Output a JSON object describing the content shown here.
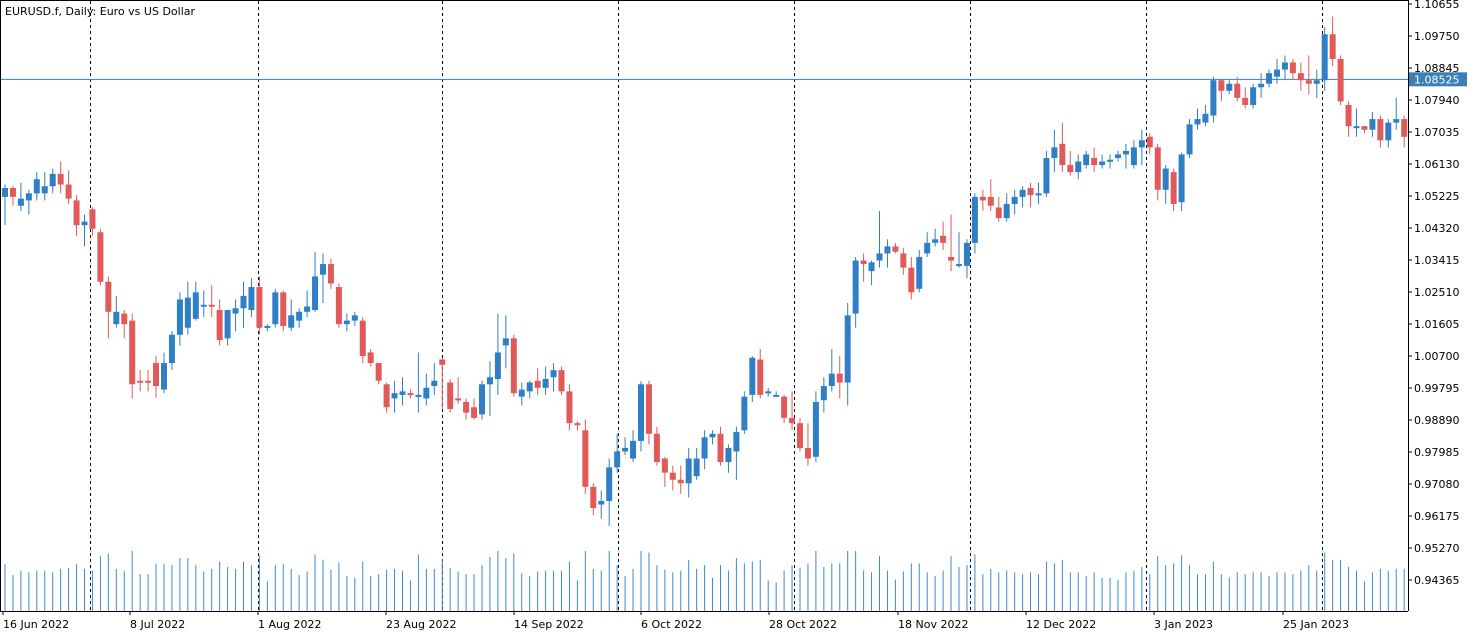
{
  "header": {
    "symbol_title": "EURUSD.f, Daily:  Euro vs US Dollar"
  },
  "current_price_label": "1.08525",
  "colors": {
    "bull": "#2f7fc6",
    "bear": "#e05a5a",
    "grid": "#000000",
    "price_line": "#3a7fb8",
    "volume": "#3a8ad0",
    "background": "#ffffff"
  },
  "chart_data": {
    "type": "candlestick",
    "title": "EURUSD.f, Daily:  Euro vs US Dollar",
    "y_ticks": [
      "1.10655",
      "1.09750",
      "1.08845",
      "1.07940",
      "1.07035",
      "1.06130",
      "1.05225",
      "1.04320",
      "1.03415",
      "1.02510",
      "1.01605",
      "1.00700",
      "0.99795",
      "0.98890",
      "0.97985",
      "0.97080",
      "0.96175",
      "0.95270",
      "0.94365"
    ],
    "ylim": [
      0.94,
      1.1075
    ],
    "x_tick_labels": [
      "16 Jun 2022",
      "8 Jul 2022",
      "1 Aug 2022",
      "23 Aug 2022",
      "14 Sep 2022",
      "6 Oct 2022",
      "28 Oct 2022",
      "18 Nov 2022",
      "12 Dec 2022",
      "3 Jan 2023",
      "25 Jan 2023"
    ],
    "current_price": 1.08525,
    "candles": [
      {
        "o": 1.052,
        "h": 1.0555,
        "l": 1.044,
        "c": 1.0545
      },
      {
        "o": 1.0545,
        "h": 1.055,
        "l": 1.0495,
        "c": 1.052
      },
      {
        "o": 1.0495,
        "h": 1.056,
        "l": 1.048,
        "c": 1.0515
      },
      {
        "o": 1.051,
        "h": 1.054,
        "l": 1.047,
        "c": 1.053
      },
      {
        "o": 1.053,
        "h": 1.059,
        "l": 1.051,
        "c": 1.057
      },
      {
        "o": 1.053,
        "h": 1.059,
        "l": 1.051,
        "c": 1.055
      },
      {
        "o": 1.055,
        "h": 1.06,
        "l": 1.053,
        "c": 1.0585
      },
      {
        "o": 1.0585,
        "h": 1.062,
        "l": 1.053,
        "c": 1.0555
      },
      {
        "o": 1.0555,
        "h": 1.0595,
        "l": 1.05,
        "c": 1.0515
      },
      {
        "o": 1.051,
        "h": 1.0525,
        "l": 1.041,
        "c": 1.044
      },
      {
        "o": 1.044,
        "h": 1.047,
        "l": 1.038,
        "c": 1.045
      },
      {
        "o": 1.0485,
        "h": 1.049,
        "l": 1.041,
        "c": 1.043
      },
      {
        "o": 1.042,
        "h": 1.043,
        "l": 1.027,
        "c": 1.028
      },
      {
        "o": 1.028,
        "h": 1.0295,
        "l": 1.012,
        "c": 1.0195
      },
      {
        "o": 1.016,
        "h": 1.024,
        "l": 1.015,
        "c": 1.0195
      },
      {
        "o": 1.019,
        "h": 1.02,
        "l": 1.012,
        "c": 1.016
      },
      {
        "o": 1.017,
        "h": 1.019,
        "l": 0.995,
        "c": 0.999
      },
      {
        "o": 1.0,
        "h": 1.003,
        "l": 0.997,
        "c": 0.9995
      },
      {
        "o": 1.0,
        "h": 1.003,
        "l": 0.997,
        "c": 0.9995
      },
      {
        "o": 1.005,
        "h": 1.007,
        "l": 0.9952,
        "c": 0.9985
      },
      {
        "o": 0.9975,
        "h": 1.008,
        "l": 0.9965,
        "c": 1.005
      },
      {
        "o": 1.005,
        "h": 1.014,
        "l": 1.003,
        "c": 1.013
      },
      {
        "o": 1.013,
        "h": 1.025,
        "l": 1.01,
        "c": 1.023
      },
      {
        "o": 1.015,
        "h": 1.028,
        "l": 1.013,
        "c": 1.0235
      },
      {
        "o": 1.0175,
        "h": 1.028,
        "l": 1.017,
        "c": 1.025
      },
      {
        "o": 1.021,
        "h": 1.0255,
        "l": 1.018,
        "c": 1.0215
      },
      {
        "o": 1.0215,
        "h": 1.027,
        "l": 1.018,
        "c": 1.021
      },
      {
        "o": 1.02,
        "h": 1.023,
        "l": 1.01,
        "c": 1.0115
      },
      {
        "o": 1.012,
        "h": 1.02,
        "l": 1.01,
        "c": 1.02
      },
      {
        "o": 1.019,
        "h": 1.023,
        "l": 1.014,
        "c": 1.0205
      },
      {
        "o": 1.0205,
        "h": 1.028,
        "l": 1.015,
        "c": 1.024
      },
      {
        "o": 1.02,
        "h": 1.029,
        "l": 1.018,
        "c": 1.0265
      },
      {
        "o": 1.0265,
        "h": 1.0295,
        "l": 1.013,
        "c": 1.015
      },
      {
        "o": 1.015,
        "h": 1.016,
        "l": 1.014,
        "c": 1.0155
      },
      {
        "o": 1.016,
        "h": 1.026,
        "l": 1.015,
        "c": 1.025
      },
      {
        "o": 1.025,
        "h": 1.0255,
        "l": 1.014,
        "c": 1.0155
      },
      {
        "o": 1.015,
        "h": 1.023,
        "l": 1.014,
        "c": 1.0185
      },
      {
        "o": 1.017,
        "h": 1.0205,
        "l": 1.015,
        "c": 1.0195
      },
      {
        "o": 1.0195,
        "h": 1.0255,
        "l": 1.018,
        "c": 1.021
      },
      {
        "o": 1.02,
        "h": 1.0365,
        "l": 1.0195,
        "c": 1.0295
      },
      {
        "o": 1.03,
        "h": 1.036,
        "l": 1.022,
        "c": 1.033
      },
      {
        "o": 1.033,
        "h": 1.0345,
        "l": 1.026,
        "c": 1.0275
      },
      {
        "o": 1.0265,
        "h": 1.0275,
        "l": 1.015,
        "c": 1.016
      },
      {
        "o": 1.016,
        "h": 1.019,
        "l": 1.014,
        "c": 1.017
      },
      {
        "o": 1.017,
        "h": 1.0195,
        "l": 1.0155,
        "c": 1.0185
      },
      {
        "o": 1.017,
        "h": 1.018,
        "l": 1.005,
        "c": 1.007
      },
      {
        "o": 1.008,
        "h": 1.009,
        "l": 1.004,
        "c": 1.005
      },
      {
        "o": 1.005,
        "h": 1.005,
        "l": 0.999,
        "c": 1.0
      },
      {
        "o": 0.999,
        "h": 0.9995,
        "l": 0.991,
        "c": 0.9925
      },
      {
        "o": 0.995,
        "h": 1.0,
        "l": 0.991,
        "c": 0.9965
      },
      {
        "o": 0.996,
        "h": 1.001,
        "l": 0.993,
        "c": 0.997
      },
      {
        "o": 0.9965,
        "h": 0.9975,
        "l": 0.995,
        "c": 0.996
      },
      {
        "o": 0.996,
        "h": 1.008,
        "l": 0.991,
        "c": 0.996
      },
      {
        "o": 0.995,
        "h": 1.002,
        "l": 0.993,
        "c": 0.998
      },
      {
        "o": 0.9985,
        "h": 1.005,
        "l": 0.996,
        "c": 1.0
      },
      {
        "o": 1.006,
        "h": 1.0065,
        "l": 0.992,
        "c": 1.0045
      },
      {
        "o": 0.9995,
        "h": 1.0005,
        "l": 0.991,
        "c": 0.992
      },
      {
        "o": 0.995,
        "h": 1.001,
        "l": 0.9935,
        "c": 0.9945
      },
      {
        "o": 0.994,
        "h": 0.995,
        "l": 0.989,
        "c": 0.991
      },
      {
        "o": 0.9925,
        "h": 0.995,
        "l": 0.989,
        "c": 0.9895
      },
      {
        "o": 0.9905,
        "h": 1.0,
        "l": 0.989,
        "c": 0.999
      },
      {
        "o": 0.999,
        "h": 1.0055,
        "l": 0.99,
        "c": 1.001
      },
      {
        "o": 1.0005,
        "h": 1.019,
        "l": 0.996,
        "c": 1.008
      },
      {
        "o": 1.01,
        "h": 1.0185,
        "l": 1.0035,
        "c": 1.012
      },
      {
        "o": 1.012,
        "h": 1.013,
        "l": 0.9955,
        "c": 0.9965
      },
      {
        "o": 0.9955,
        "h": 0.9995,
        "l": 0.993,
        "c": 0.9975
      },
      {
        "o": 0.997,
        "h": 1.0,
        "l": 0.995,
        "c": 0.9995
      },
      {
        "o": 1.0,
        "h": 1.0035,
        "l": 0.996,
        "c": 0.998
      },
      {
        "o": 0.998,
        "h": 1.004,
        "l": 0.996,
        "c": 1.0005
      },
      {
        "o": 1.001,
        "h": 1.005,
        "l": 0.997,
        "c": 1.003
      },
      {
        "o": 1.003,
        "h": 1.004,
        "l": 0.996,
        "c": 0.997
      },
      {
        "o": 0.997,
        "h": 0.999,
        "l": 0.986,
        "c": 0.988
      },
      {
        "o": 0.988,
        "h": 0.9885,
        "l": 0.986,
        "c": 0.9875
      },
      {
        "o": 0.986,
        "h": 0.989,
        "l": 0.968,
        "c": 0.97
      },
      {
        "o": 0.97,
        "h": 0.971,
        "l": 0.962,
        "c": 0.964
      },
      {
        "o": 0.965,
        "h": 0.969,
        "l": 0.961,
        "c": 0.966
      },
      {
        "o": 0.966,
        "h": 0.978,
        "l": 0.959,
        "c": 0.9755
      },
      {
        "o": 0.9755,
        "h": 0.985,
        "l": 0.974,
        "c": 0.98
      },
      {
        "o": 0.98,
        "h": 0.984,
        "l": 0.979,
        "c": 0.981
      },
      {
        "o": 0.978,
        "h": 0.986,
        "l": 0.977,
        "c": 0.983
      },
      {
        "o": 0.983,
        "h": 0.9999,
        "l": 0.98,
        "c": 0.999
      },
      {
        "o": 0.999,
        "h": 1.0,
        "l": 0.982,
        "c": 0.985
      },
      {
        "o": 0.985,
        "h": 0.987,
        "l": 0.976,
        "c": 0.977
      },
      {
        "o": 0.978,
        "h": 0.9785,
        "l": 0.97,
        "c": 0.974
      },
      {
        "o": 0.974,
        "h": 0.976,
        "l": 0.969,
        "c": 0.972
      },
      {
        "o": 0.972,
        "h": 0.976,
        "l": 0.968,
        "c": 0.971
      },
      {
        "o": 0.971,
        "h": 0.981,
        "l": 0.967,
        "c": 0.978
      },
      {
        "o": 0.973,
        "h": 0.981,
        "l": 0.972,
        "c": 0.978
      },
      {
        "o": 0.978,
        "h": 0.986,
        "l": 0.975,
        "c": 0.984
      },
      {
        "o": 0.984,
        "h": 0.986,
        "l": 0.982,
        "c": 0.985
      },
      {
        "o": 0.985,
        "h": 0.987,
        "l": 0.976,
        "c": 0.977
      },
      {
        "o": 0.977,
        "h": 0.982,
        "l": 0.974,
        "c": 0.981
      },
      {
        "o": 0.98,
        "h": 0.987,
        "l": 0.972,
        "c": 0.9855
      },
      {
        "o": 0.986,
        "h": 0.997,
        "l": 0.985,
        "c": 0.9955
      },
      {
        "o": 0.996,
        "h": 1.007,
        "l": 0.994,
        "c": 1.0065
      },
      {
        "o": 1.006,
        "h": 1.009,
        "l": 0.995,
        "c": 0.996
      },
      {
        "o": 0.9965,
        "h": 0.998,
        "l": 0.9955,
        "c": 0.997
      },
      {
        "o": 0.996,
        "h": 0.997,
        "l": 0.9955,
        "c": 0.996
      },
      {
        "o": 0.9955,
        "h": 0.996,
        "l": 0.988,
        "c": 0.9895
      },
      {
        "o": 0.9895,
        "h": 0.997,
        "l": 0.986,
        "c": 0.988
      },
      {
        "o": 0.988,
        "h": 0.9895,
        "l": 0.98,
        "c": 0.981
      },
      {
        "o": 0.981,
        "h": 0.988,
        "l": 0.976,
        "c": 0.978
      },
      {
        "o": 0.9785,
        "h": 0.997,
        "l": 0.977,
        "c": 0.994
      },
      {
        "o": 0.9945,
        "h": 1.001,
        "l": 0.991,
        "c": 0.9985
      },
      {
        "o": 0.9985,
        "h": 1.009,
        "l": 0.997,
        "c": 1.002
      },
      {
        "o": 1.002,
        "h": 1.007,
        "l": 0.995,
        "c": 0.9995
      },
      {
        "o": 0.9995,
        "h": 1.022,
        "l": 0.993,
        "c": 1.0185
      },
      {
        "o": 1.019,
        "h": 1.035,
        "l": 1.015,
        "c": 1.034
      },
      {
        "o": 1.034,
        "h": 1.036,
        "l": 1.028,
        "c": 1.033
      },
      {
        "o": 1.031,
        "h": 1.034,
        "l": 1.027,
        "c": 1.0335
      },
      {
        "o": 1.034,
        "h": 1.048,
        "l": 1.032,
        "c": 1.036
      },
      {
        "o": 1.036,
        "h": 1.04,
        "l": 1.032,
        "c": 1.038
      },
      {
        "o": 1.038,
        "h": 1.039,
        "l": 1.036,
        "c": 1.0365
      },
      {
        "o": 1.036,
        "h": 1.0375,
        "l": 1.03,
        "c": 1.032
      },
      {
        "o": 1.032,
        "h": 1.035,
        "l": 1.023,
        "c": 1.025
      },
      {
        "o": 1.026,
        "h": 1.037,
        "l": 1.025,
        "c": 1.035
      },
      {
        "o": 1.036,
        "h": 1.042,
        "l": 1.035,
        "c": 1.039
      },
      {
        "o": 1.039,
        "h": 1.043,
        "l": 1.038,
        "c": 1.04
      },
      {
        "o": 1.041,
        "h": 1.045,
        "l": 1.037,
        "c": 1.039
      },
      {
        "o": 1.035,
        "h": 1.047,
        "l": 1.031,
        "c": 1.034
      },
      {
        "o": 1.033,
        "h": 1.042,
        "l": 1.032,
        "c": 1.033
      },
      {
        "o": 1.0325,
        "h": 1.04,
        "l": 1.029,
        "c": 1.039
      },
      {
        "o": 1.039,
        "h": 1.053,
        "l": 1.036,
        "c": 1.052
      },
      {
        "o": 1.052,
        "h": 1.054,
        "l": 1.048,
        "c": 1.051
      },
      {
        "o": 1.052,
        "h": 1.057,
        "l": 1.048,
        "c": 1.0495
      },
      {
        "o": 1.049,
        "h": 1.052,
        "l": 1.045,
        "c": 1.046
      },
      {
        "o": 1.046,
        "h": 1.053,
        "l": 1.045,
        "c": 1.05
      },
      {
        "o": 1.05,
        "h": 1.054,
        "l": 1.047,
        "c": 1.052
      },
      {
        "o": 1.052,
        "h": 1.055,
        "l": 1.049,
        "c": 1.054
      },
      {
        "o": 1.0545,
        "h": 1.056,
        "l": 1.049,
        "c": 1.0525
      },
      {
        "o": 1.0525,
        "h": 1.056,
        "l": 1.05,
        "c": 1.053
      },
      {
        "o": 1.053,
        "h": 1.065,
        "l": 1.052,
        "c": 1.063
      },
      {
        "o": 1.063,
        "h": 1.071,
        "l": 1.059,
        "c": 1.066
      },
      {
        "o": 1.067,
        "h": 1.073,
        "l": 1.059,
        "c": 1.061
      },
      {
        "o": 1.061,
        "h": 1.065,
        "l": 1.058,
        "c": 1.059
      },
      {
        "o": 1.059,
        "h": 1.064,
        "l": 1.057,
        "c": 1.062
      },
      {
        "o": 1.061,
        "h": 1.065,
        "l": 1.06,
        "c": 1.064
      },
      {
        "o": 1.063,
        "h": 1.066,
        "l": 1.059,
        "c": 1.061
      },
      {
        "o": 1.061,
        "h": 1.064,
        "l": 1.06,
        "c": 1.062
      },
      {
        "o": 1.062,
        "h": 1.064,
        "l": 1.06,
        "c": 1.0625
      },
      {
        "o": 1.063,
        "h": 1.065,
        "l": 1.062,
        "c": 1.064
      },
      {
        "o": 1.064,
        "h": 1.067,
        "l": 1.06,
        "c": 1.065
      },
      {
        "o": 1.061,
        "h": 1.068,
        "l": 1.06,
        "c": 1.066
      },
      {
        "o": 1.066,
        "h": 1.071,
        "l": 1.061,
        "c": 1.068
      },
      {
        "o": 1.069,
        "h": 1.07,
        "l": 1.064,
        "c": 1.066
      },
      {
        "o": 1.066,
        "h": 1.067,
        "l": 1.051,
        "c": 1.054
      },
      {
        "o": 1.054,
        "h": 1.061,
        "l": 1.05,
        "c": 1.06
      },
      {
        "o": 1.059,
        "h": 1.06,
        "l": 1.048,
        "c": 1.05
      },
      {
        "o": 1.0505,
        "h": 1.0645,
        "l": 1.048,
        "c": 1.064
      },
      {
        "o": 1.064,
        "h": 1.074,
        "l": 1.063,
        "c": 1.0725
      },
      {
        "o": 1.0725,
        "h": 1.077,
        "l": 1.071,
        "c": 1.074
      },
      {
        "o": 1.073,
        "h": 1.078,
        "l": 1.072,
        "c": 1.0755
      },
      {
        "o": 1.075,
        "h": 1.086,
        "l": 1.073,
        "c": 1.085
      },
      {
        "o": 1.085,
        "h": 1.085,
        "l": 1.079,
        "c": 1.082
      },
      {
        "o": 1.082,
        "h": 1.085,
        "l": 1.081,
        "c": 1.084
      },
      {
        "o": 1.084,
        "h": 1.086,
        "l": 1.079,
        "c": 1.08
      },
      {
        "o": 1.08,
        "h": 1.083,
        "l": 1.077,
        "c": 1.078
      },
      {
        "o": 1.078,
        "h": 1.084,
        "l": 1.077,
        "c": 1.083
      },
      {
        "o": 1.083,
        "h": 1.087,
        "l": 1.08,
        "c": 1.084
      },
      {
        "o": 1.084,
        "h": 1.088,
        "l": 1.083,
        "c": 1.087
      },
      {
        "o": 1.086,
        "h": 1.091,
        "l": 1.084,
        "c": 1.088
      },
      {
        "o": 1.088,
        "h": 1.092,
        "l": 1.085,
        "c": 1.09
      },
      {
        "o": 1.09,
        "h": 1.091,
        "l": 1.085,
        "c": 1.087
      },
      {
        "o": 1.087,
        "h": 1.09,
        "l": 1.082,
        "c": 1.085
      },
      {
        "o": 1.085,
        "h": 1.092,
        "l": 1.081,
        "c": 1.084
      },
      {
        "o": 1.084,
        "h": 1.088,
        "l": 1.08,
        "c": 1.085
      },
      {
        "o": 1.085,
        "h": 1.1,
        "l": 1.082,
        "c": 1.098
      },
      {
        "o": 1.098,
        "h": 1.103,
        "l": 1.089,
        "c": 1.091
      },
      {
        "o": 1.091,
        "h": 1.092,
        "l": 1.078,
        "c": 1.079
      },
      {
        "o": 1.078,
        "h": 1.079,
        "l": 1.069,
        "c": 1.072
      },
      {
        "o": 1.072,
        "h": 1.077,
        "l": 1.069,
        "c": 1.072
      },
      {
        "o": 1.072,
        "h": 1.072,
        "l": 1.07,
        "c": 1.071
      },
      {
        "o": 1.071,
        "h": 1.076,
        "l": 1.069,
        "c": 1.074
      },
      {
        "o": 1.074,
        "h": 1.075,
        "l": 1.066,
        "c": 1.068
      },
      {
        "o": 1.068,
        "h": 1.074,
        "l": 1.066,
        "c": 1.073
      },
      {
        "o": 1.073,
        "h": 1.08,
        "l": 1.071,
        "c": 1.074
      },
      {
        "o": 1.074,
        "h": 1.075,
        "l": 1.066,
        "c": 1.069
      }
    ]
  }
}
